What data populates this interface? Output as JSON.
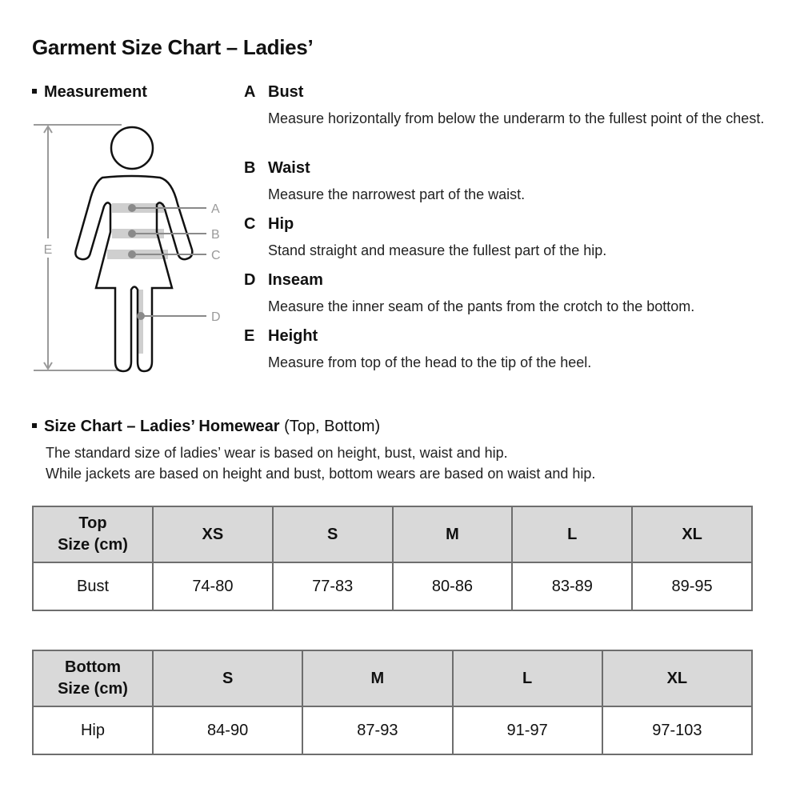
{
  "title": "Garment Size Chart – Ladies’",
  "measurement": {
    "label": "Measurement",
    "figure_labels": [
      "A",
      "B",
      "C",
      "D",
      "E"
    ],
    "definitions": [
      {
        "letter": "A",
        "name": "Bust",
        "desc": "Measure horizontally from below the underarm to the fullest point of the chest."
      },
      {
        "letter": "B",
        "name": "Waist",
        "desc": "Measure the narrowest part of the waist."
      },
      {
        "letter": "C",
        "name": "Hip",
        "desc": "Stand straight and measure the fullest part of the hip."
      },
      {
        "letter": "D",
        "name": "Inseam",
        "desc": "Measure the inner seam of the pants from the crotch to the bottom."
      },
      {
        "letter": "E",
        "name": "Height",
        "desc": "Measure from top of the head to the tip of the heel."
      }
    ]
  },
  "size_chart": {
    "label_bold": "Size Chart – Ladies’ Homewear",
    "label_light": " (Top, Bottom)",
    "intro": [
      "The standard size of ladies’ wear is based on height, bust, waist and hip.",
      "While jackets are based on height and bust, bottom wears are based on waist and hip."
    ],
    "top_table": {
      "header_line1": "Top",
      "header_line2": "Size (cm)",
      "sizes": [
        "XS",
        "S",
        "M",
        "L",
        "XL"
      ],
      "row_label": "Bust",
      "values": [
        "74-80",
        "77-83",
        "80-86",
        "83-89",
        "89-95"
      ]
    },
    "bottom_table": {
      "header_line1": "Bottom",
      "header_line2": "Size (cm)",
      "sizes": [
        "S",
        "M",
        "L",
        "XL"
      ],
      "row_label": "Hip",
      "values": [
        "84-90",
        "87-93",
        "91-97",
        "97-103"
      ]
    }
  }
}
